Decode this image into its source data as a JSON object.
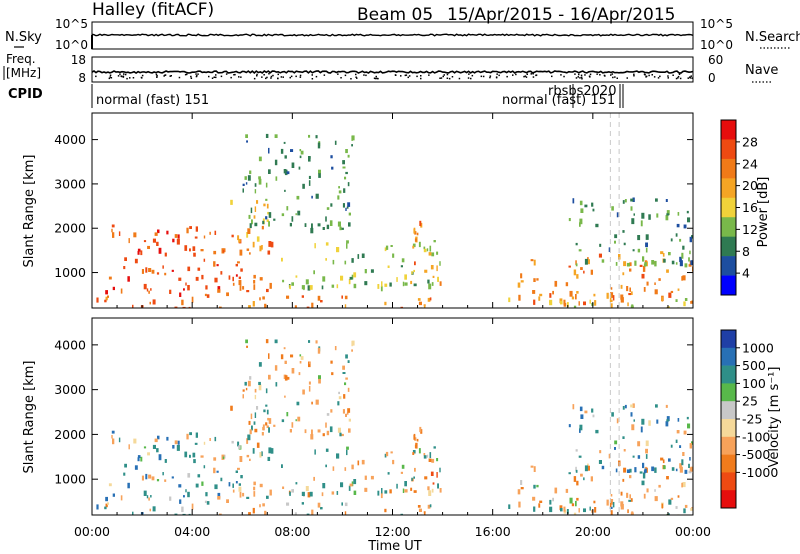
{
  "header": {
    "station": "Halley (fitACF)",
    "beam": "Beam 05",
    "date_range": "15/Apr/2015 - 16/Apr/2015"
  },
  "top_panels": {
    "nsky": {
      "label": "N.Sky",
      "left_ticks": [
        "10^5",
        "10^0"
      ],
      "right_label": "N.Search",
      "right_ticks": [
        "10^5",
        "10^0"
      ]
    },
    "freq": {
      "label_line1": "Freq.",
      "label_line2": "[MHz]",
      "left_ticks": [
        "18",
        "8"
      ],
      "right_label": "Nave",
      "right_ticks": [
        "60",
        "0"
      ]
    },
    "cpid": {
      "label": "CPID",
      "entries": [
        "normal (fast) 151",
        "rbsbs2020",
        "normal (fast) 151"
      ]
    }
  },
  "time_axis": {
    "label": "Time UT",
    "ticks": [
      "00:00",
      "04:00",
      "08:00",
      "12:00",
      "16:00",
      "20:00",
      "00:00"
    ]
  },
  "colors": {
    "power_scale": [
      "#0000ff",
      "#1d4ea0",
      "#2f7a52",
      "#79b84a",
      "#f0d23a",
      "#f5a524",
      "#f07a18",
      "#ee4a12",
      "#e60d0d"
    ],
    "velocity_scale": [
      "#1f3fa6",
      "#2870b5",
      "#2f8f88",
      "#58b84a",
      "#c8c8c8",
      "#f5d99a",
      "#f7a25a",
      "#f07b1c",
      "#ee4a12",
      "#e60d0d"
    ]
  },
  "chart_data": [
    {
      "type": "heatmap",
      "panel": "power",
      "ylabel": "Slant Range [km]",
      "xlabel": "",
      "x_range_hours": [
        0,
        24
      ],
      "ylim": [
        200,
        4600
      ],
      "yticks": [
        1000,
        2000,
        3000,
        4000
      ],
      "colorbar": {
        "label": "Power [dB]",
        "ticks": [
          4,
          8,
          12,
          16,
          20,
          24,
          28
        ],
        "range": [
          0,
          32
        ]
      },
      "data_gaps_hours": [
        [
          13.8,
          14.8
        ],
        [
          14.8,
          16.2
        ]
      ],
      "echo_regions": [
        {
          "t_start_h": 0.5,
          "t_end_h": 7.2,
          "range_km": [
            500,
            2100
          ],
          "power_dB": 26
        },
        {
          "t_start_h": 5.5,
          "t_end_h": 7.0,
          "range_km": [
            1500,
            2700
          ],
          "power_dB": 18
        },
        {
          "t_start_h": 6.0,
          "t_end_h": 10.5,
          "range_km": [
            2000,
            4200
          ],
          "power_dB": 10
        },
        {
          "t_start_h": 7.5,
          "t_end_h": 13.9,
          "range_km": [
            700,
            1800
          ],
          "power_dB": 12
        },
        {
          "t_start_h": 12.7,
          "t_end_h": 13.9,
          "range_km": [
            800,
            2200
          ],
          "power_dB": 22
        },
        {
          "t_start_h": 0.0,
          "t_end_h": 13.9,
          "range_km": [
            200,
            500
          ],
          "power_dB": 24
        },
        {
          "t_start_h": 17.0,
          "t_end_h": 24.0,
          "range_km": [
            300,
            1500
          ],
          "power_dB": 22
        },
        {
          "t_start_h": 19.0,
          "t_end_h": 24.0,
          "range_km": [
            1200,
            2700
          ],
          "power_dB": 10
        },
        {
          "t_start_h": 16.5,
          "t_end_h": 24.0,
          "range_km": [
            200,
            450
          ],
          "power_dB": 14
        }
      ]
    },
    {
      "type": "heatmap",
      "panel": "velocity",
      "ylabel": "Slant Range [km]",
      "xlabel": "Time UT",
      "x_range_hours": [
        0,
        24
      ],
      "ylim": [
        200,
        4600
      ],
      "yticks": [
        1000,
        2000,
        3000,
        4000
      ],
      "colorbar": {
        "label": "Velocity [m s⁻¹]",
        "ticks": [
          1000,
          500,
          100,
          25,
          -25,
          -100,
          -500,
          -1000
        ]
      },
      "data_gaps_hours": [
        [
          13.8,
          14.8
        ],
        [
          14.8,
          16.2
        ]
      ],
      "echo_regions": [
        {
          "t_start_h": 0.5,
          "t_end_h": 7.2,
          "range_km": [
            500,
            2100
          ],
          "velocity_ms": 150
        },
        {
          "t_start_h": 5.5,
          "t_end_h": 7.0,
          "range_km": [
            1500,
            2700
          ],
          "velocity_ms": -150
        },
        {
          "t_start_h": 6.0,
          "t_end_h": 10.5,
          "range_km": [
            2000,
            4200
          ],
          "velocity_ms": -200
        },
        {
          "t_start_h": 7.5,
          "t_end_h": 13.9,
          "range_km": [
            700,
            1800
          ],
          "velocity_ms": -150
        },
        {
          "t_start_h": 12.7,
          "t_end_h": 13.9,
          "range_km": [
            800,
            2200
          ],
          "velocity_ms": -600
        },
        {
          "t_start_h": 0.0,
          "t_end_h": 13.9,
          "range_km": [
            200,
            500
          ],
          "velocity_ms": -60
        },
        {
          "t_start_h": 17.0,
          "t_end_h": 24.0,
          "range_km": [
            300,
            1500
          ],
          "velocity_ms": -300
        },
        {
          "t_start_h": 19.0,
          "t_end_h": 24.0,
          "range_km": [
            1200,
            2700
          ],
          "velocity_ms": 200
        },
        {
          "t_start_h": 16.5,
          "t_end_h": 24.0,
          "range_km": [
            200,
            450
          ],
          "velocity_ms": 0
        }
      ]
    }
  ]
}
